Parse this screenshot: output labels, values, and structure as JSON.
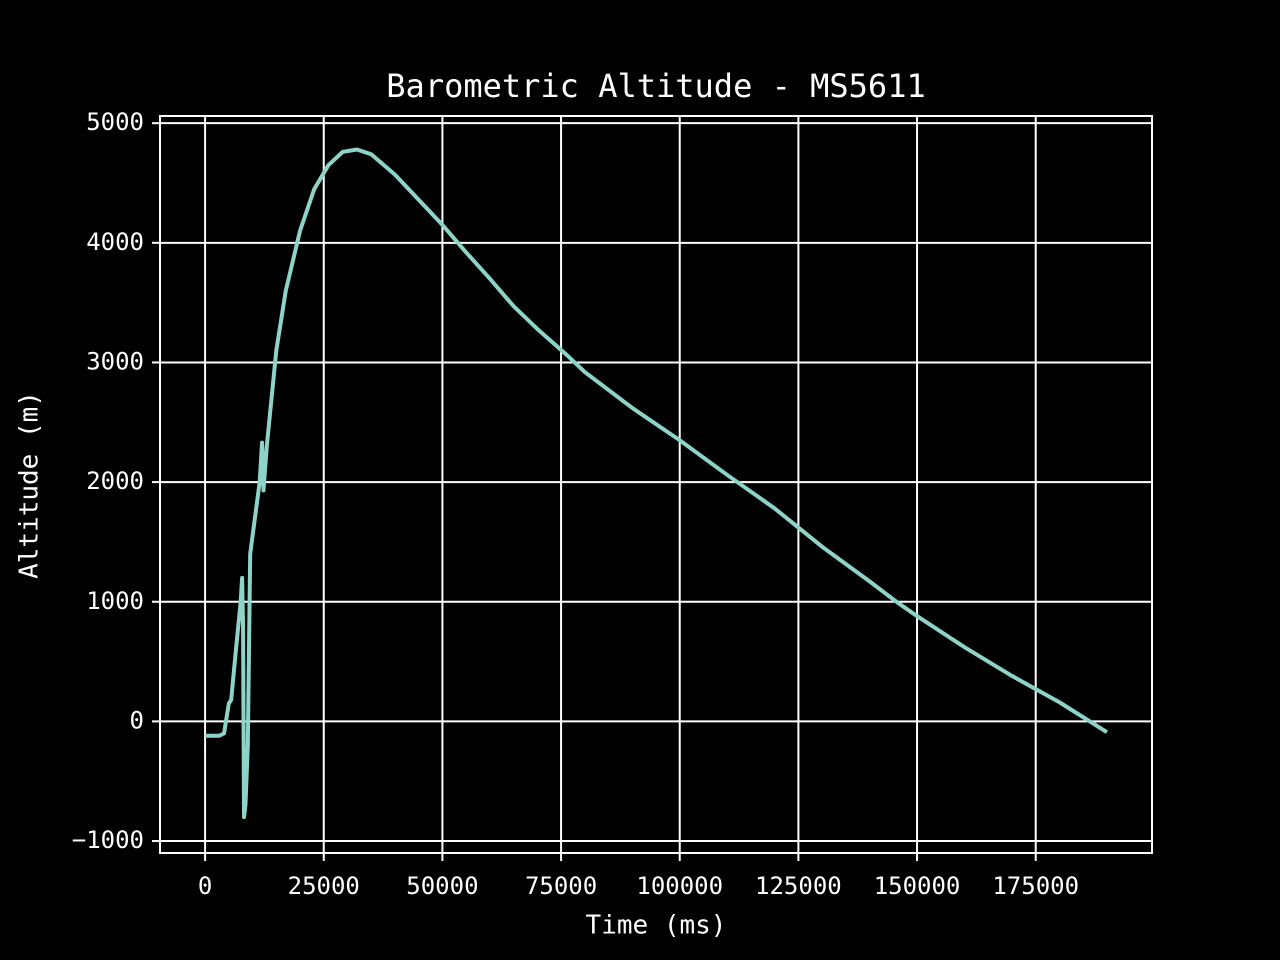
{
  "chart_data": {
    "type": "line",
    "title": "Barometric Altitude - MS5611",
    "xlabel": "Time (ms)",
    "ylabel": "Altitude (m)",
    "x": [
      0,
      3000,
      4000,
      5000,
      5500,
      6500,
      7500,
      7800,
      8000,
      8200,
      8500,
      9000,
      9500,
      10500,
      11500,
      12000,
      12300,
      13000,
      14000,
      15000,
      17000,
      20000,
      23000,
      26000,
      29000,
      32000,
      35000,
      40000,
      45000,
      50000,
      55000,
      60000,
      65000,
      70000,
      76000,
      80000,
      90000,
      100000,
      110000,
      120000,
      125000,
      130000,
      140000,
      146000,
      150000,
      160000,
      170000,
      180000,
      190000
    ],
    "values": [
      -120,
      -120,
      -100,
      150,
      180,
      600,
      1000,
      1200,
      800,
      -800,
      -700,
      -200,
      1400,
      1700,
      2000,
      2330,
      1930,
      2300,
      2700,
      3100,
      3600,
      4100,
      4450,
      4650,
      4760,
      4780,
      4740,
      4570,
      4360,
      4150,
      3920,
      3700,
      3470,
      3280,
      3070,
      2920,
      2620,
      2350,
      2060,
      1780,
      1620,
      1460,
      1170,
      990,
      880,
      620,
      380,
      160,
      -90
    ],
    "color": "#8dd3c7",
    "xlim": [
      -9500,
      199500
    ],
    "ylim": [
      -1100,
      5060
    ],
    "xticks": [
      0,
      25000,
      50000,
      75000,
      100000,
      125000,
      150000,
      175000
    ],
    "yticks": [
      {
        "value": -1000,
        "label": "−1000"
      },
      0,
      1000,
      2000,
      3000,
      4000,
      5000
    ],
    "grid": true
  }
}
